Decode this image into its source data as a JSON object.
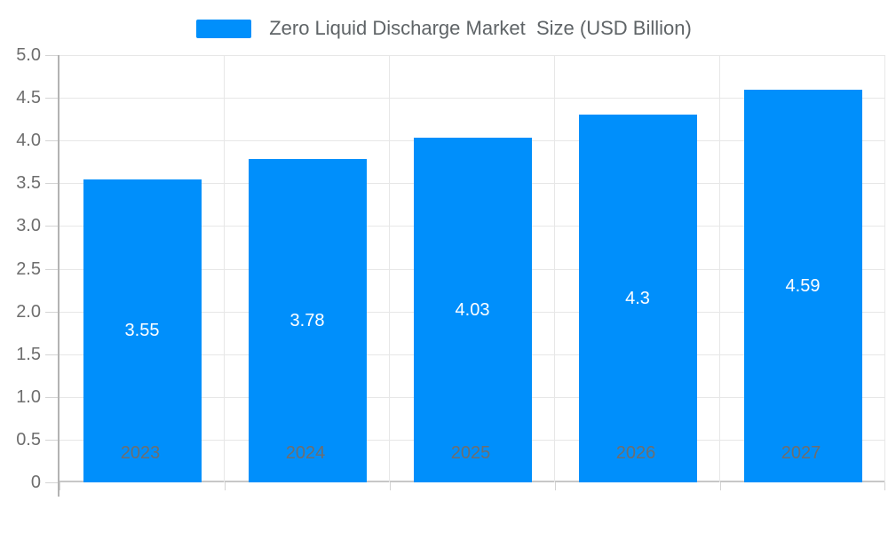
{
  "legend": {
    "label": "Zero Liquid Discharge Market  Size (USD Billion)",
    "swatch_color": "#008FFB"
  },
  "chart_data": {
    "type": "bar",
    "title": "Zero Liquid Discharge Market  Size (USD Billion)",
    "categories": [
      "2023",
      "2024",
      "2025",
      "2026",
      "2027"
    ],
    "values": [
      3.55,
      3.78,
      4.03,
      4.3,
      4.59
    ],
    "bar_labels": [
      "3.55",
      "3.78",
      "4.03",
      "4.3",
      "4.59"
    ],
    "xlabel": "",
    "ylabel": "",
    "ylim": [
      0,
      5
    ],
    "ytick_step": 0.5,
    "ytick_labels": [
      "5.0",
      "4.5",
      "4.0",
      "3.5",
      "3.0",
      "2.5",
      "2.0",
      "1.5",
      "1.0",
      "0.5",
      "0"
    ],
    "grid": true,
    "legend_position": "top",
    "bar_color": "#008FFB",
    "data_label_color": "#ffffff",
    "axis_label_color": "#6e6e6e"
  }
}
